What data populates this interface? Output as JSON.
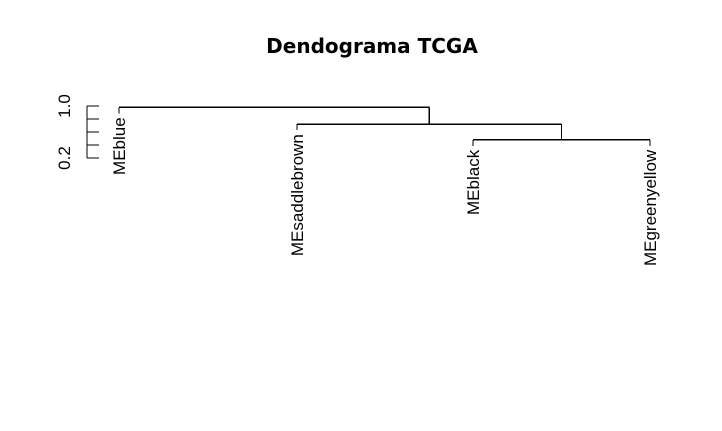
{
  "chart_data": {
    "type": "dendrogram",
    "title": "Dendograma TCGA",
    "xlabel": "",
    "ylabel": "",
    "ylim": [
      0.0,
      1.1
    ],
    "y_axis": {
      "ticks": [
        0.2,
        0.4,
        0.6,
        0.8,
        1.0
      ],
      "tick_labels": [
        {
          "value": 0.2,
          "label": "0.2"
        },
        {
          "value": 1.0,
          "label": "1.0"
        }
      ]
    },
    "leaves": [
      "MEblue",
      "MEsaddlebrown",
      "MEblack",
      "MEgreenyellow"
    ],
    "merges": [
      {
        "left": "MEblack",
        "right": "MEgreenyellow",
        "height": 0.48
      },
      {
        "left": "MEsaddlebrown",
        "right": "MEblack+MEgreenyellow",
        "height": 0.72
      },
      {
        "left": "MEblue",
        "right": "MEsaddlebrown+MEblack+MEgreenyellow",
        "height": 0.98
      }
    ],
    "leaf_heights": [
      0.98,
      0.72,
      0.48,
      0.48
    ],
    "grid": false,
    "legend": "none"
  }
}
